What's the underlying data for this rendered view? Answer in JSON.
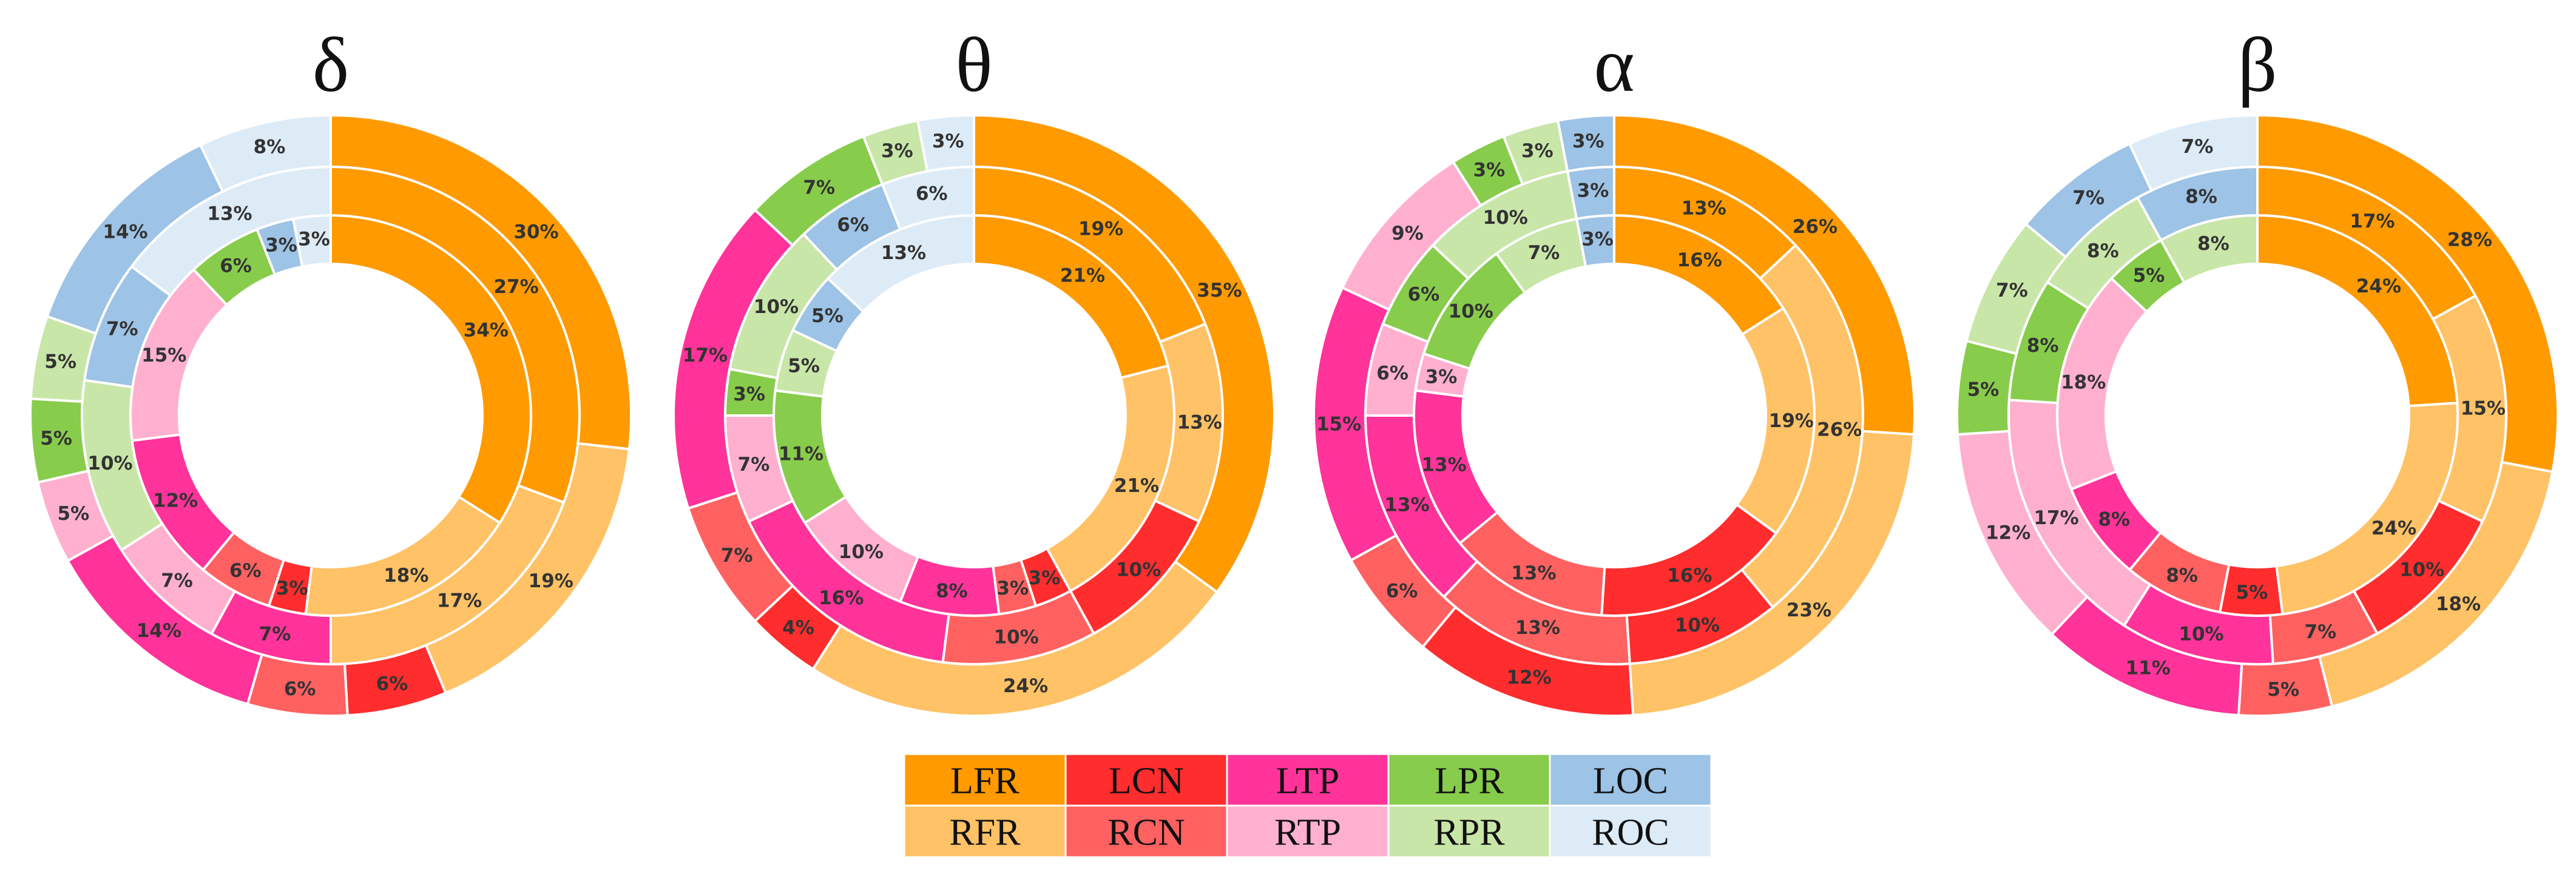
{
  "chart_data": {
    "type": "nested-donut",
    "categories": [
      "LFR",
      "RFR",
      "LCN",
      "RCN",
      "LTP",
      "RTP",
      "LPR",
      "RPR",
      "LOC",
      "ROC"
    ],
    "colors": {
      "LFR": "#FF9A00",
      "RFR": "#FFC266",
      "LCN": "#FF2D2D",
      "RCN": "#FF6161",
      "LTP": "#FF3399",
      "RTP": "#FFB0CF",
      "LPR": "#88CC4C",
      "RPR": "#C8E6A8",
      "LOC": "#9DC3E6",
      "ROC": "#DDEBF7"
    },
    "ring_order": [
      "inner",
      "middle",
      "outer"
    ],
    "panels": [
      {
        "title": "δ",
        "rings": {
          "inner": {
            "LFR": 34,
            "RFR": 18,
            "LCN": 3,
            "RCN": 6,
            "LTP": 12,
            "RTP": 15,
            "LPR": 6,
            "RPR": 0,
            "LOC": 3,
            "ROC": 3
          },
          "middle": {
            "LFR": 27,
            "RFR": 17,
            "LCN": 0,
            "RCN": 0,
            "LTP": 7,
            "RTP": 7,
            "LPR": 0,
            "RPR": 10,
            "LOC": 7,
            "ROC": 13
          },
          "outer": {
            "LFR": 30,
            "RFR": 19,
            "LCN": 6,
            "RCN": 6,
            "LTP": 14,
            "RTP": 5,
            "LPR": 5,
            "RPR": 5,
            "LOC": 14,
            "ROC": 8
          }
        }
      },
      {
        "title": "θ",
        "rings": {
          "inner": {
            "LFR": 21,
            "RFR": 21,
            "LCN": 3,
            "RCN": 3,
            "LTP": 8,
            "RTP": 10,
            "LPR": 11,
            "RPR": 5,
            "LOC": 5,
            "ROC": 13
          },
          "middle": {
            "LFR": 19,
            "RFR": 13,
            "LCN": 10,
            "RCN": 10,
            "LTP": 16,
            "RTP": 7,
            "LPR": 3,
            "RPR": 10,
            "LOC": 6,
            "ROC": 6
          },
          "outer": {
            "LFR": 35,
            "RFR": 24,
            "LCN": 4,
            "RCN": 7,
            "LTP": 17,
            "RTP": 0,
            "LPR": 7,
            "RPR": 3,
            "LOC": 0,
            "ROC": 3
          }
        }
      },
      {
        "title": "α",
        "rings": {
          "inner": {
            "LFR": 16,
            "RFR": 19,
            "LCN": 16,
            "RCN": 13,
            "LTP": 13,
            "RTP": 3,
            "LPR": 10,
            "RPR": 7,
            "LOC": 3,
            "ROC": 0
          },
          "middle": {
            "LFR": 13,
            "RFR": 26,
            "LCN": 10,
            "RCN": 13,
            "LTP": 13,
            "RTP": 6,
            "LPR": 6,
            "RPR": 10,
            "LOC": 3,
            "ROC": 0
          },
          "outer": {
            "LFR": 26,
            "RFR": 23,
            "LCN": 12,
            "RCN": 6,
            "LTP": 15,
            "RTP": 9,
            "LPR": 3,
            "RPR": 3,
            "LOC": 3,
            "ROC": 0
          }
        }
      },
      {
        "title": "β",
        "rings": {
          "inner": {
            "LFR": 24,
            "RFR": 24,
            "LCN": 5,
            "RCN": 8,
            "LTP": 8,
            "RTP": 18,
            "LPR": 5,
            "RPR": 8,
            "LOC": 0,
            "ROC": 0
          },
          "middle": {
            "LFR": 17,
            "RFR": 15,
            "LCN": 10,
            "RCN": 7,
            "LTP": 10,
            "RTP": 17,
            "LPR": 8,
            "RPR": 8,
            "LOC": 8,
            "ROC": 0
          },
          "outer": {
            "LFR": 28,
            "RFR": 18,
            "LCN": 0,
            "RCN": 5,
            "LTP": 11,
            "RTP": 12,
            "LPR": 5,
            "RPR": 7,
            "LOC": 7,
            "ROC": 7
          }
        }
      }
    ],
    "legend": {
      "placement": "bottom-center",
      "rows": [
        [
          "LFR",
          "LCN",
          "LTP",
          "LPR",
          "LOC"
        ],
        [
          "RFR",
          "RCN",
          "RTP",
          "RPR",
          "ROC"
        ]
      ]
    }
  }
}
